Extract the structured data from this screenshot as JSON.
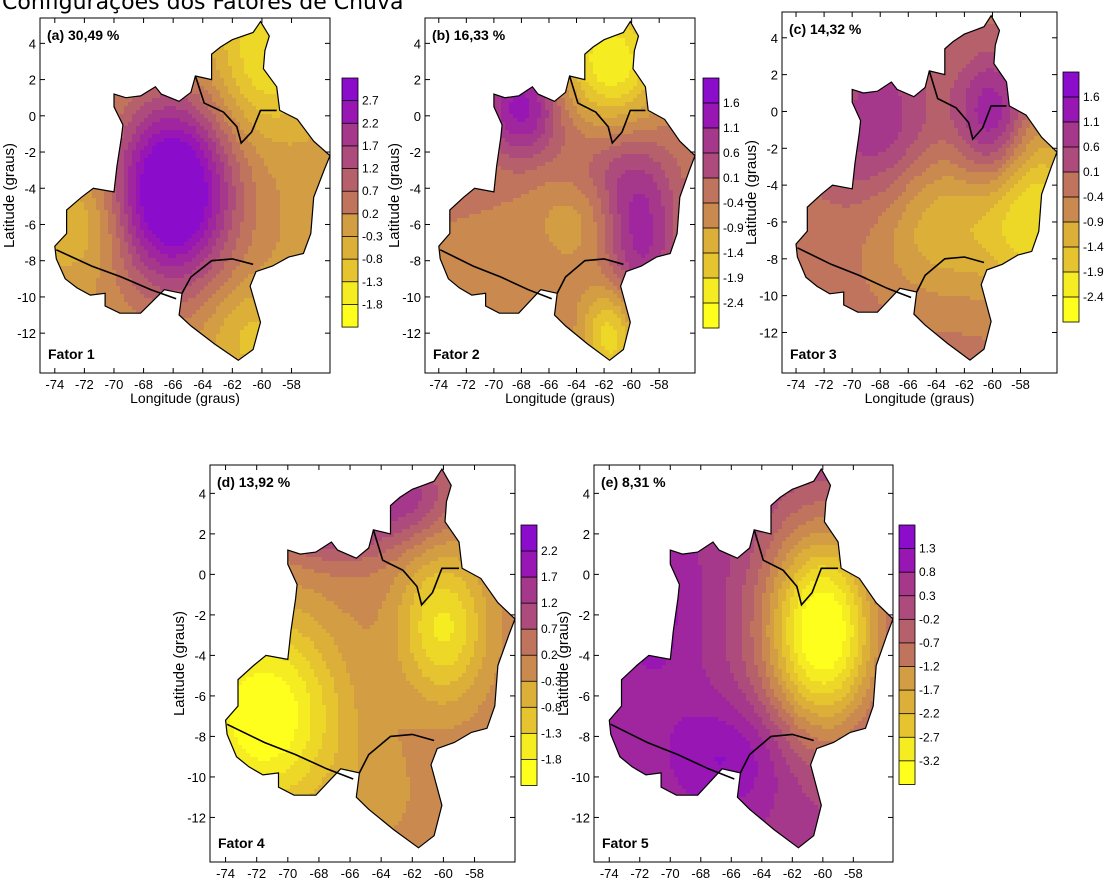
{
  "caption": "Configurações dos Fatores de Chuva",
  "axis": {
    "xlabel": "Longitude (graus)",
    "ylabel": "Latitude (graus)",
    "xticks": [
      "-74",
      "-72",
      "-70",
      "-68",
      "-66",
      "-64",
      "-62",
      "-60",
      "-58"
    ],
    "yticks": [
      "4",
      "2",
      "0",
      "-2",
      "-4",
      "-6",
      "-8",
      "-10",
      "-12"
    ]
  },
  "palette": [
    "#ffff1e",
    "#f6ec22",
    "#edd828",
    "#e5c42f",
    "#dcb038",
    "#d39d44",
    "#c9894f",
    "#c0745d",
    "#b6606c",
    "#ad4c7c",
    "#a6388c",
    "#9f269e",
    "#9716b4",
    "#8c0ccb"
  ],
  "panels": [
    {
      "letter": "(a)",
      "variance": "30,49 %",
      "factor": "Fator 1",
      "colorbar": [
        "2.7",
        "2.2",
        "1.7",
        "1.2",
        "0.7",
        "0.2",
        "-0.3",
        "-0.8",
        "-1.3",
        "-1.8"
      ],
      "theme": "blob-purple-center"
    },
    {
      "letter": "(b)",
      "variance": "16,33 %",
      "factor": "Fator 2",
      "colorbar": [
        "1.6",
        "1.1",
        "0.6",
        "0.1",
        "-0.4",
        "-0.9",
        "-1.4",
        "-1.9",
        "-2.4"
      ],
      "theme": "purple-north-west"
    },
    {
      "letter": "(c)",
      "variance": "14,32 %",
      "factor": "Fator 3",
      "colorbar": [
        "1.6",
        "1.1",
        "0.6",
        "0.1",
        "-0.4",
        "-0.9",
        "-1.4",
        "-1.9",
        "-2.4"
      ],
      "theme": "purple-north-yellow-east"
    },
    {
      "letter": "(d)",
      "variance": "13,92 %",
      "factor": "Fator 4",
      "colorbar": [
        "2.2",
        "1.7",
        "1.2",
        "0.7",
        "0.2",
        "-0.3",
        "-0.8",
        "-1.3",
        "-1.8"
      ],
      "theme": "yellow-west-yellow-east"
    },
    {
      "letter": "(e)",
      "variance": "8,31 %",
      "factor": "Fator 5",
      "colorbar": [
        "1.3",
        "0.8",
        "0.3",
        "-0.2",
        "-0.7",
        "-1.2",
        "-1.7",
        "-2.2",
        "-2.7",
        "-3.2"
      ],
      "theme": "purple-west-yellow-east"
    }
  ]
}
